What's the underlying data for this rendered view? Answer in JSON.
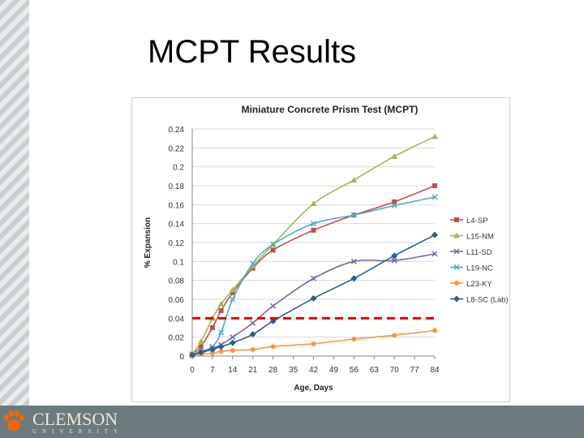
{
  "slide": {
    "title": "MCPT Results",
    "logo_text": "CLEMSON",
    "logo_sub": "UNIVERSITY"
  },
  "colors": {
    "L4-SP": "#c0504d",
    "L15-NM": "#9bbb59",
    "L11-SD": "#8064a2",
    "L19-NC": "#4bacc6",
    "L23-KY": "#f79646",
    "L8-SC (Lab)": "#2c5f8a",
    "threshold": "#e00000"
  },
  "chart_data": {
    "type": "line",
    "title": "Miniature Concrete Prism Test (MCPT)",
    "xlabel": "Age, Days",
    "ylabel": "% Expansion",
    "xlim": [
      0,
      84
    ],
    "ylim": [
      0,
      0.24
    ],
    "x_ticks": [
      "0",
      "7",
      "14",
      "21",
      "28",
      "35",
      "42",
      "49",
      "56",
      "63",
      "70",
      "77",
      "84"
    ],
    "y_ticks": [
      "0",
      "0.02",
      "0.04",
      "0.06",
      "0.08",
      "0.1",
      "0.12",
      "0.14",
      "0.16",
      "0.18",
      "0.2",
      "0.22",
      "0.24"
    ],
    "grid": "horizontal",
    "legend": "right",
    "series": [
      {
        "name": "L4-SP",
        "marker": "square",
        "points": [
          [
            0,
            0.002
          ],
          [
            3,
            0.01
          ],
          [
            7,
            0.03
          ],
          [
            10,
            0.048
          ],
          [
            14,
            0.067
          ],
          [
            21,
            0.093
          ],
          [
            28,
            0.112
          ],
          [
            42,
            0.133
          ],
          [
            56,
            0.149
          ],
          [
            70,
            0.163
          ],
          [
            84,
            0.18
          ]
        ]
      },
      {
        "name": "L15-NM",
        "marker": "triangle",
        "points": [
          [
            0,
            0.002
          ],
          [
            3,
            0.015
          ],
          [
            7,
            0.04
          ],
          [
            10,
            0.055
          ],
          [
            14,
            0.07
          ],
          [
            21,
            0.095
          ],
          [
            28,
            0.118
          ],
          [
            42,
            0.161
          ],
          [
            56,
            0.186
          ],
          [
            70,
            0.211
          ],
          [
            84,
            0.232
          ]
        ]
      },
      {
        "name": "L11-SD",
        "marker": "x",
        "points": [
          [
            0,
            0.001
          ],
          [
            3,
            0.003
          ],
          [
            7,
            0.008
          ],
          [
            10,
            0.012
          ],
          [
            14,
            0.02
          ],
          [
            21,
            0.035
          ],
          [
            28,
            0.053
          ],
          [
            42,
            0.082
          ],
          [
            56,
            0.1
          ],
          [
            70,
            0.101
          ],
          [
            84,
            0.108
          ]
        ]
      },
      {
        "name": "L19-NC",
        "marker": "x",
        "points": [
          [
            0,
            0.001
          ],
          [
            3,
            0.005
          ],
          [
            7,
            0.01
          ],
          [
            10,
            0.025
          ],
          [
            14,
            0.06
          ],
          [
            21,
            0.098
          ],
          [
            28,
            0.118
          ],
          [
            42,
            0.14
          ],
          [
            56,
            0.149
          ],
          [
            70,
            0.159
          ],
          [
            84,
            0.168
          ]
        ]
      },
      {
        "name": "L23-KY",
        "marker": "circle",
        "points": [
          [
            0,
            0.001
          ],
          [
            3,
            0.002
          ],
          [
            7,
            0.003
          ],
          [
            10,
            0.005
          ],
          [
            14,
            0.006
          ],
          [
            21,
            0.007
          ],
          [
            28,
            0.01
          ],
          [
            42,
            0.013
          ],
          [
            56,
            0.018
          ],
          [
            70,
            0.022
          ],
          [
            84,
            0.027
          ]
        ]
      },
      {
        "name": "L8-SC (Lab)",
        "marker": "diamond",
        "points": [
          [
            0,
            0.001
          ],
          [
            3,
            0.004
          ],
          [
            7,
            0.007
          ],
          [
            10,
            0.01
          ],
          [
            14,
            0.014
          ],
          [
            21,
            0.023
          ],
          [
            28,
            0.037
          ],
          [
            42,
            0.061
          ],
          [
            56,
            0.082
          ],
          [
            70,
            0.106
          ],
          [
            84,
            0.128
          ]
        ]
      }
    ],
    "threshold": {
      "y": 0.04,
      "x_range": [
        0,
        84
      ],
      "style": "dashed"
    }
  }
}
